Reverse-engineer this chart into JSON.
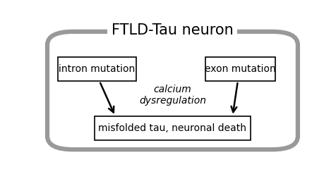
{
  "title": "FTLD-Tau neuron",
  "title_fontsize": 15,
  "box_left_label": "intron mutation",
  "box_right_label": "exon mutation",
  "box_bottom_label": "misfolded tau, neuronal death",
  "italic_label": "calcium\ndysregulation",
  "outer_box_color": "#999999",
  "inner_box_color": "#000000",
  "bg_color": "#ffffff",
  "text_color": "#000000",
  "label_fontsize": 10,
  "italic_fontsize": 10,
  "arrow_color": "#000000",
  "arrow_lw": 1.8,
  "outer_lw": 4.5
}
